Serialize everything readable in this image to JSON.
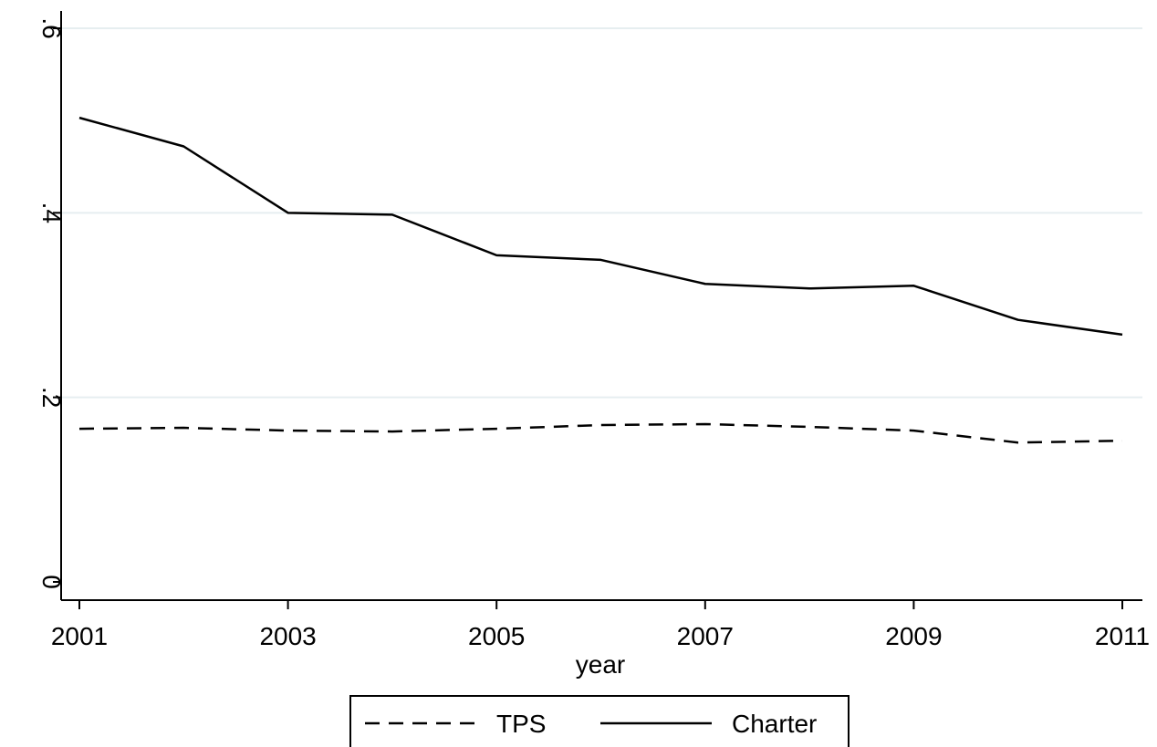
{
  "chart_data": {
    "type": "line",
    "title": "",
    "xlabel": "year",
    "ylabel": "",
    "x": [
      2001,
      2002,
      2003,
      2004,
      2005,
      2006,
      2007,
      2008,
      2009,
      2010,
      2011
    ],
    "x_ticks": [
      "2001",
      "2003",
      "2005",
      "2007",
      "2009",
      "2011"
    ],
    "y_ticks": [
      "0",
      ".2",
      ".4",
      ".6"
    ],
    "xlim": [
      2001,
      2011
    ],
    "ylim": [
      0,
      0.6
    ],
    "grid": "horizontal",
    "legend_position": "bottom",
    "series": [
      {
        "name": "TPS",
        "style": "dashed",
        "color": "#000000",
        "values": [
          0.166,
          0.167,
          0.164,
          0.163,
          0.166,
          0.17,
          0.171,
          0.168,
          0.164,
          0.151,
          0.153
        ]
      },
      {
        "name": "Charter",
        "style": "solid",
        "color": "#000000",
        "values": [
          0.503,
          0.472,
          0.4,
          0.398,
          0.354,
          0.349,
          0.323,
          0.318,
          0.321,
          0.284,
          0.268
        ]
      }
    ],
    "gridline_color": "#e6eef0"
  }
}
